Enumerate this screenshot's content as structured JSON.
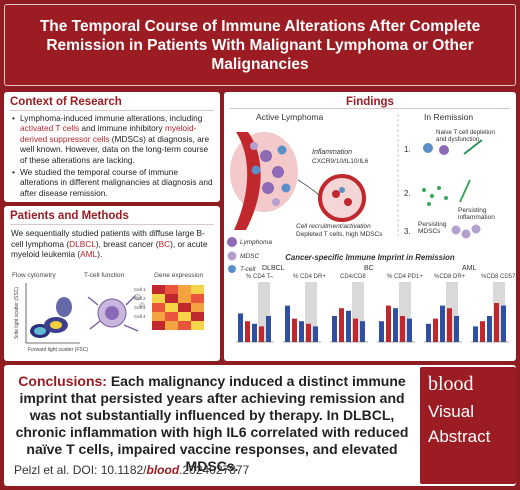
{
  "title": "The Temporal Course of Immune Alterations After Complete Remission in Patients With Malignant Lymphoma or Other Malignancies",
  "context": {
    "heading": "Context of Research",
    "bullet1_pre": "Lymphoma-induced immune alterations, including ",
    "bullet1_hl1": "activated T cells",
    "bullet1_mid": " and immune inhibitory ",
    "bullet1_hl2": "myeloid-derived suppressor cells",
    "bullet1_post": " (MDSCs) at diagnosis, are well known. However, data on the long-term course of these alterations are lacking.",
    "bullet2": "We studied the temporal course of immune alterations in different malignancies at diagnosis and after disease remission."
  },
  "methods": {
    "heading": "Patients and Methods",
    "t1": "We sequentially studied patients with diffuse large B-cell lymphoma (",
    "dlbcl": "DLBCL",
    "t2": "), breast cancer (",
    "bc": "BC",
    "t3": "), or acute myeloid leukemia (",
    "aml": "AML",
    "t4": ").",
    "flow_label": "Flow cytometry",
    "tcell_label": "T-cell function",
    "gene_label": "Gene expression",
    "ssc_label": "Side light scatter (SSC)",
    "fsc_label": "Forward light scatter (FSC)",
    "cells": [
      "Cell 1",
      "Cell 2",
      "Cell 3",
      "Cell 4"
    ]
  },
  "findings": {
    "heading": "Findings",
    "active": "Active Lymphoma",
    "remission": "In Remission",
    "inflammation": "Inflammation",
    "cytokines": "CXCR9/10/IL10/IL6",
    "recruit": "Cell recruitment/activation",
    "depleted": "Depleted T cells, high MDSCs",
    "legend_lymphoma": "Lymphoma",
    "legend_mdsc": "MDSC",
    "legend_tcell": "T-cell",
    "step1": "Naive T cell depletion and dysfunction",
    "step2": "Persisting inflammation",
    "step3": "Persisting MDSCs",
    "n1": "1.",
    "n2": "2.",
    "n3": "3.",
    "imprint": "Cancer-specific Immune Imprint in Remission",
    "groups": [
      "DLBCL",
      "BC",
      "AML"
    ],
    "metric_labels": [
      "% CD4 Tₙ",
      "% CD4 DR+",
      "CD4/CD8",
      "% CD4 PD1+",
      "%CD8 DR+",
      "%CD8 CD57+"
    ]
  },
  "conclusions": {
    "lead": "Conclusions:",
    "body": "Each malignancy induced a distinct immune imprint that persisted years after achieving remission and was not substantially influenced by therapy. In DLBCL, chronic inflammation with high IL6 correlated with reduced naïve T cells, impaired vaccine responses, and elevated MDSCs.",
    "cite_pre": "Pelzl et al. DOI: 10.1182/",
    "cite_journal": "blood",
    "cite_post": ".2024027877"
  },
  "logo": {
    "brand": "blood",
    "line1": "Visual",
    "line2": "Abstract"
  },
  "colors": {
    "brand_red": "#9b1c22",
    "accent_red": "#b3262c",
    "bar_blue": "#2f4fa0",
    "bar_red": "#c0282e"
  }
}
